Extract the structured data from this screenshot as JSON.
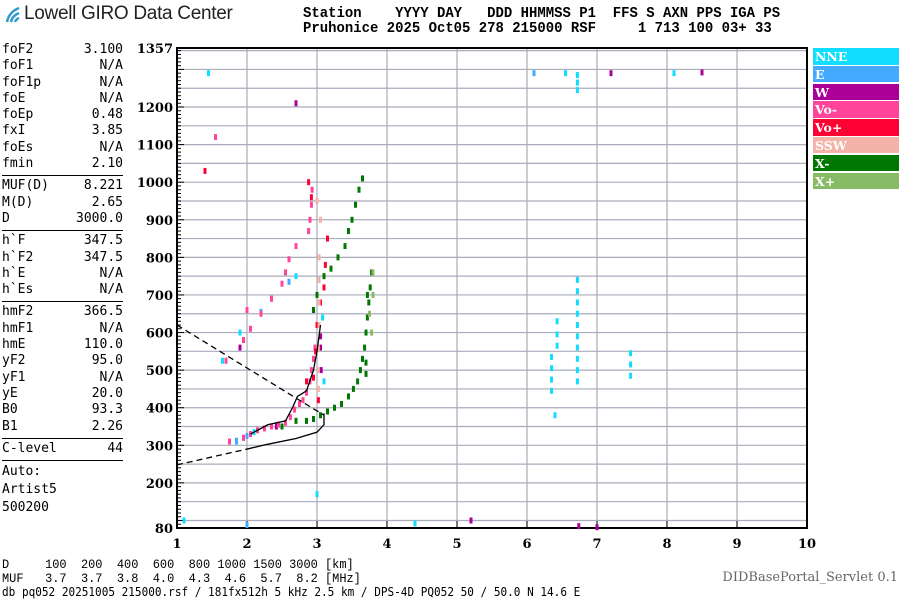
{
  "header": {
    "logo_text": "Lowell GIRO Data Center",
    "row1": "Station    YYYY DAY   DDD HHMMSS P1  FFS S AXN PPS IGA PS",
    "row2": "Pruhonice 2025 Oct05 278 215000 RSF     1 713 100 03+ 33"
  },
  "params": {
    "group1": [
      [
        "foF2",
        "3.100"
      ],
      [
        "foF1",
        "N/A"
      ],
      [
        "foF1p",
        "N/A"
      ],
      [
        "foE",
        "N/A"
      ],
      [
        "foEp",
        "0.48"
      ],
      [
        "fxI",
        "3.85"
      ],
      [
        "foEs",
        "N/A"
      ],
      [
        "fmin",
        "2.10"
      ]
    ],
    "group2": [
      [
        "MUF(D)",
        "8.221"
      ],
      [
        "M(D)",
        "2.65"
      ],
      [
        "D",
        "3000.0"
      ]
    ],
    "group3": [
      [
        "h`F",
        "347.5"
      ],
      [
        "h`F2",
        "347.5"
      ],
      [
        "h`E",
        "N/A"
      ],
      [
        "h`Es",
        "N/A"
      ]
    ],
    "group4": [
      [
        "hmF2",
        "366.5"
      ],
      [
        "hmF1",
        "N/A"
      ],
      [
        "hmE",
        "110.0"
      ],
      [
        "yF2",
        "95.0"
      ],
      [
        "yF1",
        "N/A"
      ],
      [
        "yE",
        "20.0"
      ],
      [
        "B0",
        "93.3"
      ],
      [
        "B1",
        "2.26"
      ]
    ],
    "group5": [
      [
        "C-level",
        "44"
      ]
    ],
    "auto": [
      "Auto:",
      "Artist5",
      "500200"
    ]
  },
  "footer": {
    "d_row": "D     100  200  400  600  800 1000 1500 3000 [km]",
    "muf_row": "MUF   3.7  3.7  3.8  4.0  4.3  4.6  5.7  8.2 [MHz]",
    "info": "db pq052 20251005 215000.rsf / 181fx512h 5 kHz 2.5 km / DPS-4D PQ052 50 / 50.0 N 14.6 E",
    "servlet": "DIDBasePortal_Servlet 0.1"
  },
  "chart_data": {
    "type": "scatter",
    "xlim": [
      1,
      10
    ],
    "ylim": [
      80,
      1357
    ],
    "xticks": [
      "1",
      "2",
      "3",
      "4",
      "5",
      "6",
      "7",
      "8",
      "9",
      "10"
    ],
    "yticks": [
      "80",
      "200",
      "300",
      "400",
      "500",
      "600",
      "700",
      "800",
      "900",
      "1000",
      "1100",
      "1200",
      "1357"
    ],
    "grid": true,
    "legend_position": "right",
    "series": [
      {
        "name": "NNE",
        "color": "#10ddff",
        "points": [
          [
            1.85,
            310
          ],
          [
            1.95,
            320
          ],
          [
            2.1,
            335
          ],
          [
            1.65,
            525
          ],
          [
            1.9,
            600
          ],
          [
            2.35,
            690
          ],
          [
            2.7,
            750
          ],
          [
            3.08,
            640
          ],
          [
            3.1,
            470
          ],
          [
            6.72,
            470
          ],
          [
            6.72,
            500
          ],
          [
            6.72,
            530
          ],
          [
            6.72,
            560
          ],
          [
            6.72,
            590
          ],
          [
            6.72,
            620
          ],
          [
            6.72,
            650
          ],
          [
            6.72,
            680
          ],
          [
            6.72,
            710
          ],
          [
            6.72,
            740
          ],
          [
            6.35,
            445
          ],
          [
            6.35,
            475
          ],
          [
            6.35,
            505
          ],
          [
            6.35,
            535
          ],
          [
            6.43,
            565
          ],
          [
            6.43,
            595
          ],
          [
            6.43,
            630
          ],
          [
            7.48,
            485
          ],
          [
            7.48,
            515
          ],
          [
            7.48,
            545
          ],
          [
            6.72,
            1245
          ],
          [
            6.72,
            1265
          ],
          [
            6.72,
            1285
          ],
          [
            4.4,
            92
          ],
          [
            1.1,
            100
          ],
          [
            6.55,
            1290
          ],
          [
            6.4,
            380
          ],
          [
            8.1,
            1290
          ],
          [
            1.45,
            1290
          ],
          [
            3.0,
            170
          ]
        ]
      },
      {
        "name": "E",
        "color": "#44aaff",
        "points": [
          [
            1.85,
            312
          ],
          [
            2.0,
            325
          ],
          [
            2.6,
            735
          ],
          [
            2.2,
            655
          ],
          [
            6.1,
            1290
          ],
          [
            2.0,
            88
          ]
        ]
      },
      {
        "name": "W",
        "color": "#aa0099",
        "points": [
          [
            2.7,
            1210
          ],
          [
            7.2,
            1290
          ],
          [
            8.5,
            1292
          ],
          [
            5.2,
            100
          ],
          [
            6.74,
            85
          ],
          [
            7.0,
            82
          ],
          [
            2.42,
            350
          ],
          [
            1.9,
            560
          ],
          [
            3.05,
            560
          ],
          [
            3.05,
            590
          ],
          [
            3.06,
            500
          ]
        ]
      },
      {
        "name": "Vo-",
        "color": "#ff4499",
        "points": [
          [
            1.75,
            310
          ],
          [
            1.95,
            320
          ],
          [
            2.05,
            330
          ],
          [
            2.15,
            340
          ],
          [
            2.25,
            345
          ],
          [
            2.35,
            350
          ],
          [
            2.45,
            355
          ],
          [
            2.55,
            360
          ],
          [
            2.62,
            375
          ],
          [
            2.68,
            395
          ],
          [
            2.75,
            410
          ],
          [
            2.8,
            420
          ],
          [
            2.85,
            440
          ],
          [
            2.9,
            470
          ],
          [
            2.92,
            500
          ],
          [
            2.95,
            530
          ],
          [
            2.97,
            560
          ],
          [
            1.7,
            525
          ],
          [
            1.95,
            580
          ],
          [
            2.05,
            610
          ],
          [
            2.2,
            650
          ],
          [
            2.35,
            690
          ],
          [
            2.5,
            730
          ],
          [
            2.55,
            760
          ],
          [
            2.6,
            795
          ],
          [
            2.7,
            830
          ],
          [
            2.88,
            870
          ],
          [
            2.9,
            900
          ],
          [
            2.92,
            940
          ],
          [
            2.93,
            980
          ],
          [
            1.55,
            1120
          ],
          [
            2.0,
            660
          ]
        ]
      },
      {
        "name": "Vo+",
        "color": "#ff0033",
        "points": [
          [
            2.95,
            480
          ],
          [
            2.98,
            550
          ],
          [
            3.0,
            620
          ],
          [
            3.05,
            680
          ],
          [
            3.1,
            720
          ],
          [
            3.12,
            780
          ],
          [
            3.15,
            850
          ],
          [
            3.02,
            420
          ],
          [
            2.85,
            470
          ],
          [
            2.92,
            960
          ],
          [
            1.4,
            1030
          ],
          [
            2.88,
            1000
          ]
        ]
      },
      {
        "name": "SSW",
        "color": "#f4b3a8",
        "points": [
          [
            3.02,
            450
          ],
          [
            3.02,
            500
          ],
          [
            3.02,
            560
          ],
          [
            3.03,
            620
          ],
          [
            3.03,
            680
          ],
          [
            3.03,
            740
          ],
          [
            3.03,
            800
          ],
          [
            3.05,
            900
          ],
          [
            3.0,
            950
          ]
        ]
      },
      {
        "name": "X-",
        "color": "#007700",
        "points": [
          [
            2.5,
            350
          ],
          [
            2.7,
            365
          ],
          [
            2.85,
            365
          ],
          [
            2.95,
            370
          ],
          [
            3.05,
            380
          ],
          [
            3.15,
            390
          ],
          [
            3.25,
            400
          ],
          [
            3.35,
            410
          ],
          [
            3.45,
            430
          ],
          [
            3.52,
            450
          ],
          [
            3.58,
            470
          ],
          [
            3.62,
            500
          ],
          [
            3.65,
            530
          ],
          [
            3.68,
            560
          ],
          [
            3.7,
            600
          ],
          [
            3.72,
            640
          ],
          [
            3.74,
            680
          ],
          [
            3.76,
            720
          ],
          [
            3.78,
            760
          ],
          [
            3.7,
            490
          ],
          [
            3.7,
            520
          ],
          [
            3.72,
            700
          ],
          [
            2.95,
            660
          ],
          [
            3.0,
            700
          ],
          [
            3.1,
            750
          ],
          [
            3.2,
            770
          ],
          [
            3.3,
            800
          ],
          [
            3.4,
            830
          ],
          [
            3.45,
            870
          ],
          [
            3.5,
            900
          ],
          [
            3.55,
            940
          ],
          [
            3.6,
            980
          ],
          [
            3.65,
            1010
          ]
        ]
      },
      {
        "name": "X+",
        "color": "#88bb66",
        "points": [
          [
            3.75,
            650
          ],
          [
            3.8,
            700
          ],
          [
            3.8,
            760
          ],
          [
            3.78,
            600
          ]
        ]
      }
    ],
    "profile_lines": [
      {
        "style": "solid",
        "points": [
          [
            2.05,
            330
          ],
          [
            2.3,
            355
          ],
          [
            2.55,
            365
          ],
          [
            2.65,
            400
          ],
          [
            2.72,
            430
          ],
          [
            2.85,
            445
          ],
          [
            2.95,
            500
          ],
          [
            3.0,
            550
          ],
          [
            3.05,
            620
          ]
        ]
      },
      {
        "style": "solid",
        "points": [
          [
            2.0,
            290
          ],
          [
            2.3,
            303
          ],
          [
            2.7,
            318
          ],
          [
            3.0,
            335
          ],
          [
            3.1,
            355
          ],
          [
            3.1,
            385
          ]
        ]
      },
      {
        "style": "dashed",
        "points": [
          [
            1.0,
            248
          ],
          [
            2.0,
            290
          ]
        ]
      },
      {
        "style": "dashed",
        "points": [
          [
            1.0,
            620
          ],
          [
            3.1,
            380
          ]
        ]
      }
    ]
  }
}
